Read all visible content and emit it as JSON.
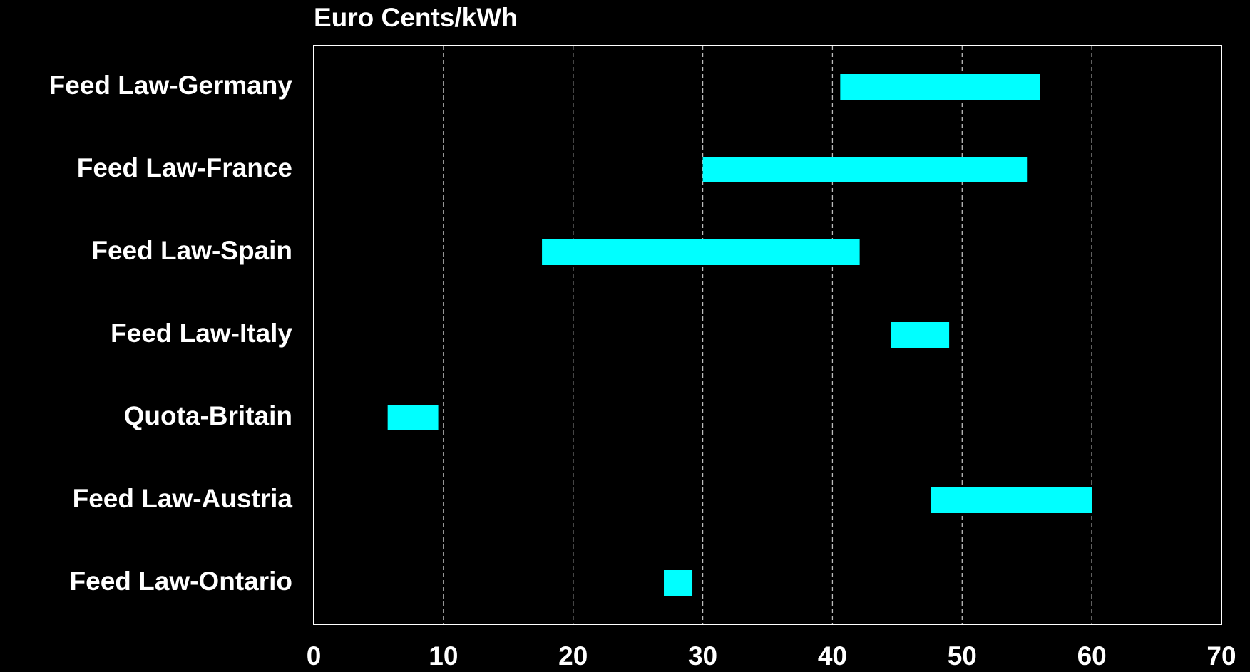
{
  "chart_data": {
    "type": "range-bar",
    "title": "Euro Cents/kWh",
    "categories": [
      "Feed Law-Germany",
      "Feed Law-France",
      "Feed Law-Spain",
      "Feed Law-Italy",
      "Quota-Britain",
      "Feed Law-Austria",
      "Feed Law-Ontario"
    ],
    "low": [
      40.6,
      30.0,
      17.6,
      44.5,
      5.7,
      47.6,
      27.0
    ],
    "high": [
      56.0,
      55.0,
      42.1,
      49.0,
      9.6,
      60.0,
      29.2
    ],
    "color": "#00ffff",
    "xlim": [
      0,
      70
    ],
    "xticks": [
      0,
      10,
      20,
      30,
      40,
      50,
      60,
      70
    ],
    "grid": true
  }
}
